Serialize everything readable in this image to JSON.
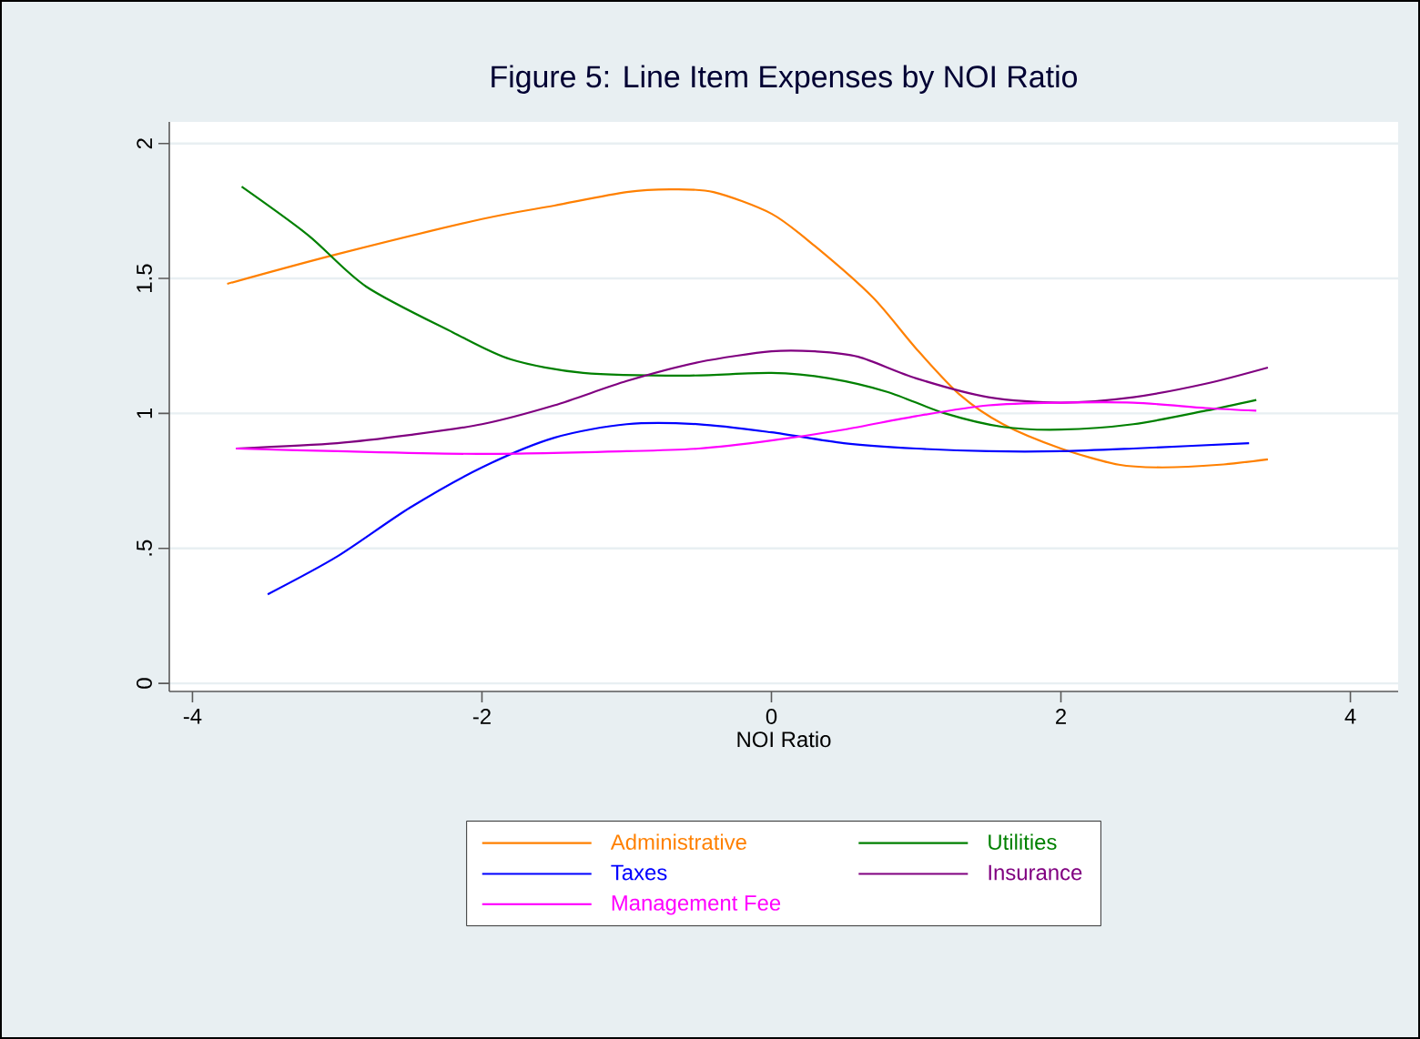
{
  "chart_data": {
    "type": "line",
    "title": "Figure 5: Line Item Expenses by NOI Ratio",
    "xlabel": "NOI Ratio",
    "xlim": [
      -4.16,
      4.33
    ],
    "ylim": [
      -0.03,
      2.08
    ],
    "xticks": [
      -4,
      -2,
      0,
      2,
      4
    ],
    "yticks": [
      0,
      {
        "value": 0.5,
        "label": ".5"
      },
      1,
      {
        "value": 1.5,
        "label": "1.5"
      },
      2
    ],
    "grid": "y",
    "legend": "bottom",
    "series": [
      {
        "name": "Administrative",
        "color": "#ff8000",
        "x": [
          -3.76,
          -3,
          -2,
          -1.5,
          -1,
          -0.7,
          -0.4,
          0,
          0.3,
          0.7,
          1,
          1.3,
          1.6,
          2,
          2.4,
          2.7,
          3.1,
          3.43
        ],
        "values": [
          1.48,
          1.59,
          1.72,
          1.77,
          1.82,
          1.83,
          1.82,
          1.74,
          1.62,
          1.43,
          1.24,
          1.07,
          0.96,
          0.87,
          0.81,
          0.8,
          0.81,
          0.83
        ]
      },
      {
        "name": "Utilities",
        "color": "#008000",
        "x": [
          -3.66,
          -3.2,
          -2.8,
          -2.2,
          -1.8,
          -1.3,
          -0.6,
          0,
          0.4,
          0.8,
          1.2,
          1.6,
          2,
          2.5,
          3,
          3.35
        ],
        "values": [
          1.84,
          1.66,
          1.47,
          1.3,
          1.2,
          1.15,
          1.14,
          1.15,
          1.13,
          1.08,
          1.0,
          0.95,
          0.94,
          0.96,
          1.01,
          1.05
        ]
      },
      {
        "name": "Taxes",
        "color": "#0000ff",
        "x": [
          -3.48,
          -3,
          -2.5,
          -2,
          -1.5,
          -1,
          -0.5,
          0,
          0.5,
          1,
          1.5,
          2,
          2.5,
          3.3
        ],
        "values": [
          0.33,
          0.47,
          0.65,
          0.8,
          0.91,
          0.96,
          0.96,
          0.93,
          0.89,
          0.87,
          0.86,
          0.86,
          0.87,
          0.89
        ]
      },
      {
        "name": "Insurance",
        "color": "#800080",
        "x": [
          -3.7,
          -3,
          -2.5,
          -2,
          -1.5,
          -1,
          -0.5,
          0,
          0.3,
          0.6,
          1,
          1.5,
          2,
          2.5,
          3,
          3.43
        ],
        "values": [
          0.87,
          0.89,
          0.92,
          0.96,
          1.03,
          1.12,
          1.19,
          1.23,
          1.23,
          1.21,
          1.13,
          1.06,
          1.04,
          1.06,
          1.11,
          1.17
        ]
      },
      {
        "name": "Management Fee",
        "color": "#ff00ff",
        "x": [
          -3.7,
          -3,
          -2,
          -1,
          -0.5,
          0,
          0.5,
          1,
          1.5,
          2,
          2.5,
          3,
          3.35
        ],
        "values": [
          0.87,
          0.86,
          0.85,
          0.86,
          0.87,
          0.9,
          0.94,
          0.99,
          1.03,
          1.04,
          1.04,
          1.02,
          1.01
        ]
      }
    ]
  }
}
